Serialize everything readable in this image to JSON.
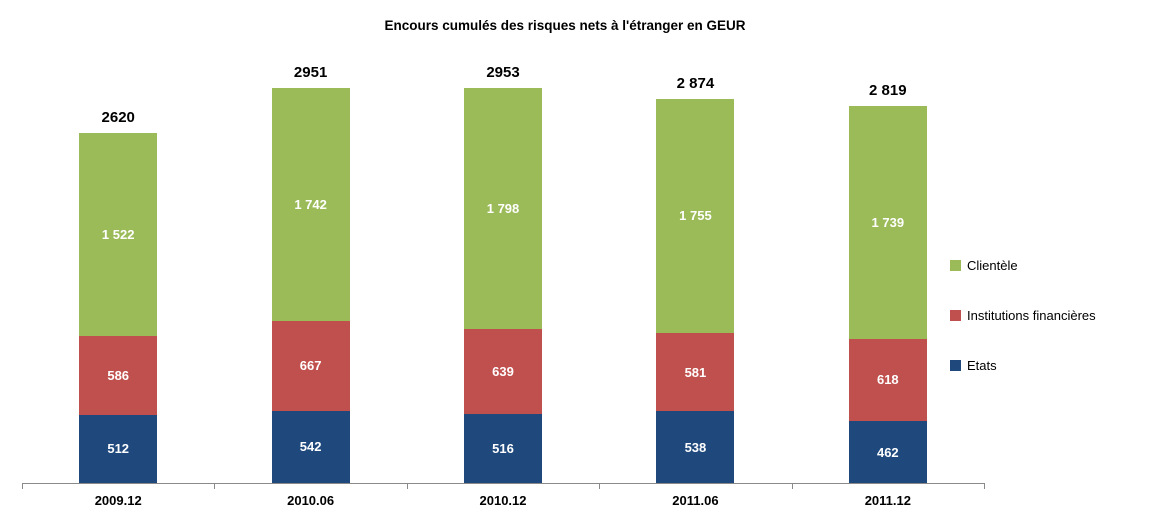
{
  "title": "Encours cumulés des risques nets à l'étranger  en GEUR",
  "chart_data": {
    "type": "bar",
    "stacked": true,
    "title": "Encours cumulés des risques nets à l'étranger  en GEUR",
    "categories": [
      "2009.12",
      "2010.06",
      "2010.12",
      "2011.06",
      "2011.12"
    ],
    "series": [
      {
        "name": "Etats",
        "color": "#1F497D",
        "values": [
          512,
          542,
          516,
          538,
          462
        ],
        "labels": [
          "512",
          "542",
          "516",
          "538",
          "462"
        ]
      },
      {
        "name": "Institutions financières",
        "color": "#C0504D",
        "values": [
          586,
          667,
          639,
          581,
          618
        ],
        "labels": [
          "586",
          "667",
          "639",
          "581",
          "618"
        ]
      },
      {
        "name": "Clientèle",
        "color": "#9BBB59",
        "values": [
          1522,
          1742,
          1798,
          1755,
          1739
        ],
        "labels": [
          "1 522",
          "1 742",
          "1 798",
          "1 755",
          "1 739"
        ]
      }
    ],
    "totals": [
      "2620",
      "2951",
      "2953",
      "2 874",
      "2 819"
    ],
    "legend": [
      {
        "label": "Clientèle",
        "color": "#9BBB59"
      },
      {
        "label": "Institutions financières",
        "color": "#C0504D"
      },
      {
        "label": "Etats",
        "color": "#1F497D"
      }
    ],
    "ylim": [
      0,
      2953
    ],
    "grid": false,
    "legend_position": "right",
    "axis_color": "#8a8a8a"
  }
}
